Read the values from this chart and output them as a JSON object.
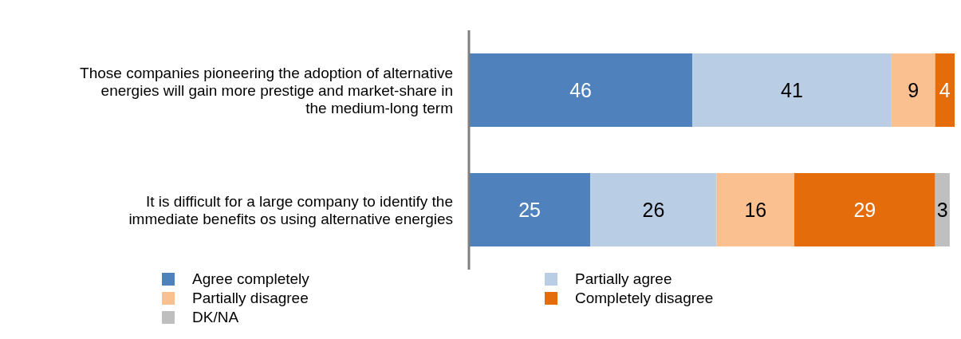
{
  "chart_data": {
    "type": "bar",
    "orientation": "horizontal",
    "stacked": true,
    "data_labels": true,
    "tick_labels": "y",
    "legend": "bottom",
    "xlim": [
      0,
      100
    ],
    "categories": [
      "Those companies pioneering the adoption of alternative energies will gain more prestige and market-share in the medium-long term",
      "It is difficult for a large company to identify the immediate benefits os using alternative energies"
    ],
    "series": [
      {
        "name": "Agree completely",
        "color": "#4f81bd",
        "values": [
          46,
          25
        ]
      },
      {
        "name": "Partially agree",
        "color": "#b9cde5",
        "values": [
          41,
          26
        ]
      },
      {
        "name": "Partially disagree",
        "color": "#fac090",
        "values": [
          9,
          16
        ]
      },
      {
        "name": "Completely disagree",
        "color": "#e46c0a",
        "values": [
          4,
          29
        ]
      },
      {
        "name": "DK/NA",
        "color": "#bfbfbf",
        "values": [
          null,
          3
        ]
      }
    ]
  }
}
